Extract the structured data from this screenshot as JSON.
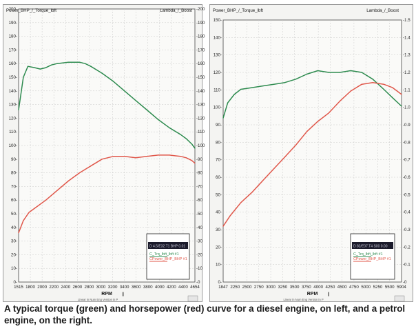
{
  "caption": "A typical torque (green) and horsepower (red) curve for a diesel engine, on left, and a petrol engine, on the right.",
  "colors": {
    "torque": "#2e8b4f",
    "power": "#e0574a",
    "grid": "#c9c9c9",
    "axis": "#444444"
  },
  "chart_data": [
    {
      "type": "line",
      "chart_label": "Power_BHP_/_Torque_lbft",
      "right_label": "Lambda_/_Boost",
      "xlabel": "RPM",
      "x_ticks": [
        "1515",
        "1800",
        "2000",
        "2200",
        "2400",
        "2600",
        "2800",
        "3000",
        "3200",
        "3400",
        "3600",
        "3800",
        "4000",
        "4200",
        "4400",
        "4654"
      ],
      "xlim": [
        1515,
        4654
      ],
      "y_left_ticks": [
        "0-",
        "10-",
        "20-",
        "30-",
        "40-",
        "50-",
        "60-",
        "70-",
        "80-",
        "90-",
        "100-",
        "110-",
        "120-",
        "130-",
        "140-",
        "150-",
        "160-",
        "170-",
        "180-",
        "190-",
        "200-"
      ],
      "y_right_ticks": [
        "-0",
        "-10",
        "-20",
        "-30",
        "-40",
        "-50",
        "-60",
        "-70",
        "-80",
        "-90",
        "-100",
        "-110",
        "-120",
        "-130",
        "-140",
        "-150",
        "-160",
        "-170",
        "-180",
        "-190",
        "-200"
      ],
      "ylim": [
        0,
        200
      ],
      "grid": true,
      "legend": {
        "header": "D 4.5/E32.T1 BHP 0.01",
        "entries": [
          "C_Trq_lbft_lbft #1",
          "CPower_BHP_BHP #1"
        ]
      },
      "footer": "Linear in Num Eng   Version in P",
      "series": [
        {
          "name": "C_Trq_lbft_lbft #1",
          "color": "torque",
          "x": [
            1515,
            1600,
            1680,
            1800,
            1900,
            2000,
            2100,
            2200,
            2400,
            2600,
            2700,
            2800,
            3000,
            3200,
            3400,
            3600,
            3800,
            4000,
            4200,
            4400,
            4500,
            4600,
            4654
          ],
          "y": [
            126,
            150,
            158,
            157,
            156,
            157,
            159,
            160,
            161,
            161,
            160,
            158,
            153,
            147,
            140,
            133,
            126,
            119,
            113,
            108,
            105,
            101,
            98
          ]
        },
        {
          "name": "CPower_BHP_BHP #1",
          "color": "power",
          "x": [
            1515,
            1600,
            1700,
            1800,
            2000,
            2200,
            2400,
            2600,
            2800,
            3000,
            3200,
            3400,
            3600,
            3800,
            4000,
            4200,
            4400,
            4500,
            4600,
            4654
          ],
          "y": [
            36,
            45,
            51,
            54,
            60,
            67,
            74,
            80,
            85,
            90,
            92,
            92,
            91,
            92,
            93,
            93,
            92,
            91,
            89,
            87
          ]
        }
      ]
    },
    {
      "type": "line",
      "chart_label": "Power_BHP_/_Torque_lbft",
      "right_label": "Lambda_/_Boost",
      "xlabel": "RPM",
      "x_ticks": [
        "1847",
        "2250",
        "2500",
        "2750",
        "3000",
        "3250",
        "3500",
        "3750",
        "4000",
        "4250",
        "4500",
        "4750",
        "5000",
        "5250",
        "5500",
        "5904"
      ],
      "xlim": [
        1847,
        5904
      ],
      "y_left_ticks": [
        "0-",
        "10-",
        "20-",
        "30-",
        "40-",
        "50-",
        "60-",
        "70-",
        "80-",
        "90-",
        "100-",
        "110-",
        "120-",
        "130-",
        "140-",
        "150-"
      ],
      "y_right_ticks": [
        "-0",
        "-0.1",
        "-0.2",
        "-0.3",
        "-0.4",
        "-0.5",
        "-0.6",
        "-0.7",
        "-0.8",
        "-0.9",
        "-1.0",
        "-1.1",
        "-1.2",
        "-1.3",
        "-1.4",
        "-1.5"
      ],
      "ylim": [
        0,
        155
      ],
      "grid": true,
      "legend": {
        "header": "D 82/E07.T4 S00 0.00",
        "entries": [
          "C_Trq_lbft_lbft #1",
          "CPower_BHP_BHP #1"
        ]
      },
      "footer": "Linear in Num Eng   Version in P",
      "series": [
        {
          "name": "C_Trq_lbft_lbft #1",
          "color": "torque",
          "x": [
            1847,
            1950,
            2100,
            2250,
            2500,
            2750,
            3000,
            3250,
            3500,
            3750,
            4000,
            4250,
            4500,
            4750,
            5000,
            5250,
            5500,
            5700,
            5904
          ],
          "y": [
            97,
            106,
            111,
            114,
            115,
            116,
            117,
            118,
            120,
            123,
            125,
            124,
            124,
            125,
            124,
            120,
            114,
            109,
            104
          ]
        },
        {
          "name": "CPower_BHP_BHP #1",
          "color": "power",
          "x": [
            1847,
            2000,
            2250,
            2500,
            2750,
            3000,
            3250,
            3500,
            3750,
            4000,
            4250,
            4500,
            4750,
            5000,
            5250,
            5500,
            5700,
            5904
          ],
          "y": [
            33,
            39,
            47,
            53,
            60,
            67,
            74,
            81,
            89,
            95,
            100,
            107,
            113,
            117,
            118,
            117,
            115,
            111
          ]
        }
      ]
    }
  ]
}
